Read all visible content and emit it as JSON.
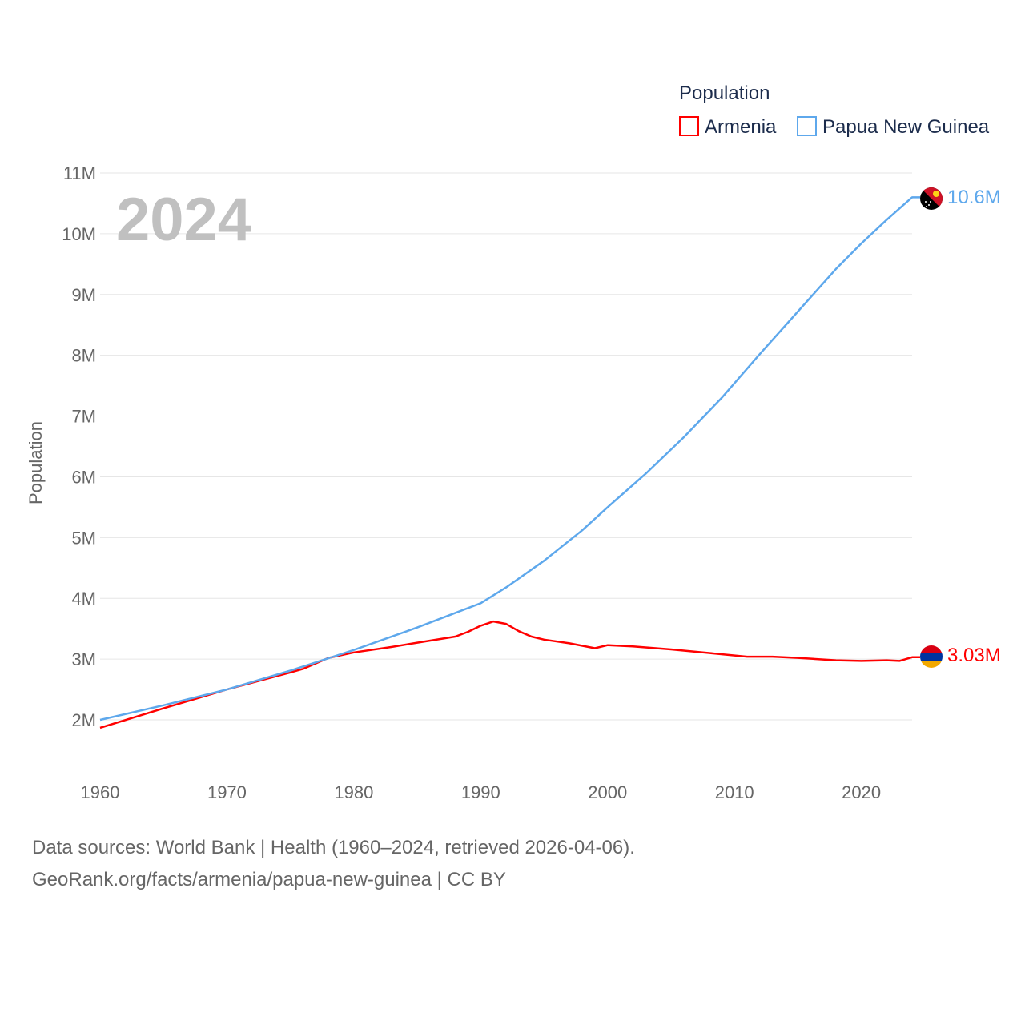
{
  "chart_data": {
    "type": "line",
    "title": "",
    "year_watermark": "2024",
    "xlabel": "",
    "ylabel": "Population",
    "xlim": [
      1960,
      2024
    ],
    "ylim": [
      2000000,
      11000000
    ],
    "x_ticks": [
      "1960",
      "1970",
      "1980",
      "1990",
      "2000",
      "2010",
      "2020"
    ],
    "x_tick_values": [
      1960,
      1970,
      1980,
      1990,
      2000,
      2010,
      2020
    ],
    "y_ticks": [
      "2M",
      "3M",
      "4M",
      "5M",
      "6M",
      "7M",
      "8M",
      "9M",
      "10M",
      "11M"
    ],
    "y_tick_values": [
      2000000,
      3000000,
      4000000,
      5000000,
      6000000,
      7000000,
      8000000,
      9000000,
      10000000,
      11000000
    ],
    "grid": true,
    "legend": {
      "title": "Population",
      "placement": "top-right"
    },
    "series": [
      {
        "name": "Armenia",
        "color": "#ff0000",
        "end_label": "3.03M",
        "x": [
          1960,
          1965,
          1970,
          1975,
          1976,
          1978,
          1980,
          1983,
          1985,
          1988,
          1989,
          1990,
          1991,
          1992,
          1993,
          1994,
          1995,
          1997,
          1999,
          2000,
          2002,
          2005,
          2008,
          2011,
          2013,
          2015,
          2018,
          2020,
          2022,
          2023,
          2024
        ],
        "y": [
          1870000,
          2190000,
          2500000,
          2780000,
          2840000,
          3020000,
          3110000,
          3200000,
          3270000,
          3370000,
          3450000,
          3550000,
          3620000,
          3580000,
          3460000,
          3370000,
          3320000,
          3260000,
          3180000,
          3230000,
          3210000,
          3160000,
          3100000,
          3040000,
          3040000,
          3020000,
          2980000,
          2970000,
          2980000,
          2970000,
          3030000
        ]
      },
      {
        "name": "Papua New Guinea",
        "color": "#5ea8ec",
        "end_label": "10.6M",
        "x": [
          1960,
          1965,
          1970,
          1975,
          1980,
          1985,
          1988,
          1990,
          1992,
          1995,
          1998,
          2000,
          2003,
          2006,
          2009,
          2012,
          2015,
          2018,
          2020,
          2022,
          2024
        ],
        "y": [
          2000000,
          2240000,
          2500000,
          2810000,
          3150000,
          3520000,
          3760000,
          3920000,
          4180000,
          4620000,
          5120000,
          5500000,
          6050000,
          6650000,
          7300000,
          8020000,
          8720000,
          9420000,
          9840000,
          10230000,
          10600000
        ]
      }
    ]
  },
  "footer": {
    "line1": "Data sources: World Bank | Health (1960–2024, retrieved 2026-04-06).",
    "line2": "GeoRank.org/facts/armenia/papua-new-guinea | CC BY"
  }
}
